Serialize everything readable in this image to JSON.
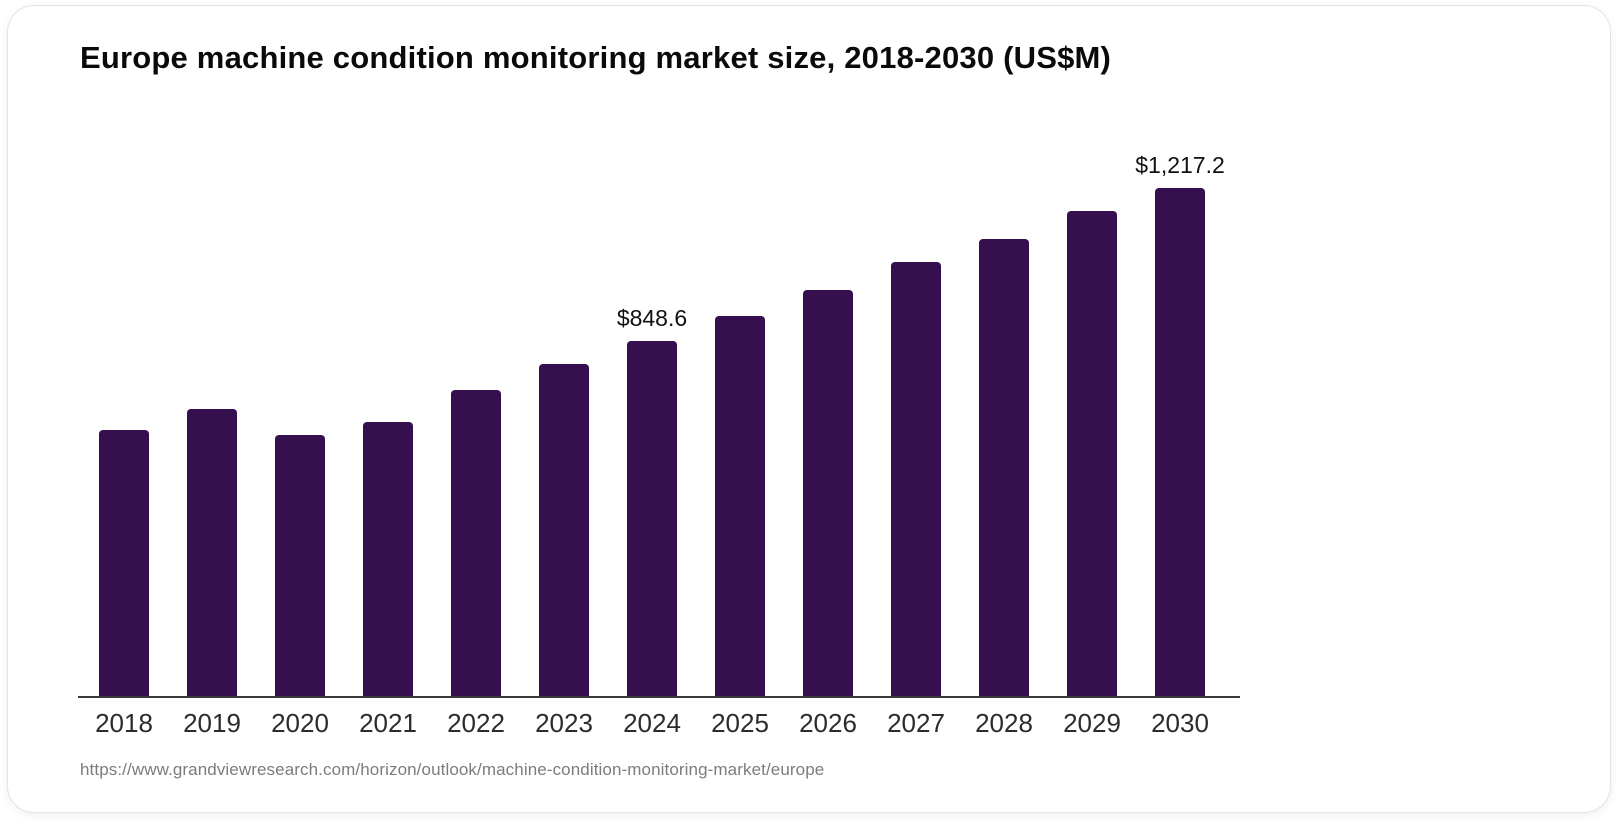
{
  "chart_data": {
    "type": "bar",
    "title": "Europe machine condition monitoring market size, 2018-2030 (US$M)",
    "unit": "US$M",
    "bar_color": "#36104E",
    "axis_color": "#3a3a3a",
    "ylim": [
      0,
      1300
    ],
    "grid": false,
    "legend": "none",
    "categories": [
      "2018",
      "2019",
      "2020",
      "2021",
      "2022",
      "2023",
      "2024",
      "2025",
      "2026",
      "2027",
      "2028",
      "2029",
      "2030"
    ],
    "values": [
      636,
      685,
      624,
      654,
      731,
      793,
      848.6,
      909,
      971,
      1036,
      1092,
      1159,
      1217.2
    ],
    "bars": [
      {
        "year": "2018",
        "value": 636,
        "label": ""
      },
      {
        "year": "2019",
        "value": 685,
        "label": ""
      },
      {
        "year": "2020",
        "value": 624,
        "label": ""
      },
      {
        "year": "2021",
        "value": 654,
        "label": ""
      },
      {
        "year": "2022",
        "value": 731,
        "label": ""
      },
      {
        "year": "2023",
        "value": 793,
        "label": ""
      },
      {
        "year": "2024",
        "value": 848.6,
        "label": "$848.6"
      },
      {
        "year": "2025",
        "value": 909,
        "label": ""
      },
      {
        "year": "2026",
        "value": 971,
        "label": ""
      },
      {
        "year": "2027",
        "value": 1036,
        "label": ""
      },
      {
        "year": "2028",
        "value": 1092,
        "label": ""
      },
      {
        "year": "2029",
        "value": 1159,
        "label": ""
      },
      {
        "year": "2030",
        "value": 1217.2,
        "label": "$1,217.2"
      }
    ]
  },
  "source": {
    "url_text": "https://www.grandviewresearch.com/horizon/outlook/machine-condition-monitoring-market/europe"
  }
}
